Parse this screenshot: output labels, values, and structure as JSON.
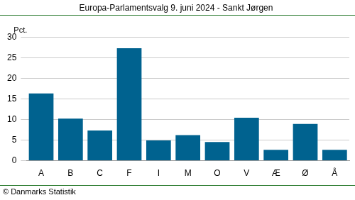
{
  "chart_data": {
    "type": "bar",
    "title": "Europa-Parlamentsvalg 9. juni 2024 - Sankt Jørgen",
    "ylabel": "Pct.",
    "source": "© Danmarks Statistik",
    "categories": [
      "A",
      "B",
      "C",
      "F",
      "I",
      "M",
      "O",
      "V",
      "Æ",
      "Ø",
      "Å"
    ],
    "values": [
      16.3,
      10.2,
      7.3,
      27.3,
      4.9,
      6.2,
      4.5,
      10.4,
      2.6,
      8.9,
      2.6
    ],
    "color": "#00628f",
    "ylim": [
      0,
      30
    ],
    "yticks": [
      0,
      5,
      10,
      15,
      20,
      25,
      30
    ],
    "grid": true
  }
}
